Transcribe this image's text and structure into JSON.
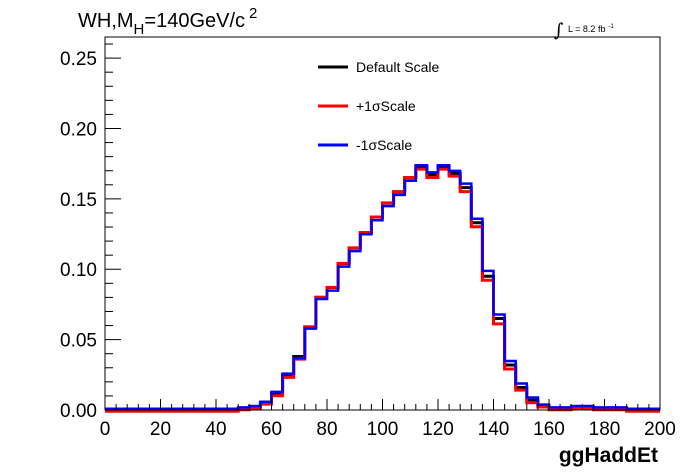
{
  "chart_data": {
    "type": "line",
    "title_prefix": "WH,M",
    "title_sub": "H",
    "title_main": "=140GeV/c",
    "title_sup": "2",
    "lumi_symbol": "∫",
    "lumi_text": "L = 8.2 fb",
    "lumi_sup": "-1",
    "xlabel": "ggHaddEt",
    "ylabel": "",
    "xlim": [
      0,
      200
    ],
    "ylim": [
      0,
      0.265
    ],
    "x_ticks": [
      "0",
      "20",
      "40",
      "60",
      "80",
      "100",
      "120",
      "140",
      "160",
      "180",
      "200"
    ],
    "x_tick_values": [
      0,
      20,
      40,
      60,
      80,
      100,
      120,
      140,
      160,
      180,
      200
    ],
    "y_ticks": [
      "0.00",
      "0.05",
      "0.10",
      "0.15",
      "0.20",
      "0.25"
    ],
    "y_tick_values": [
      0,
      0.05,
      0.1,
      0.15,
      0.2,
      0.25
    ],
    "grid": false,
    "legend_position": "top-center",
    "bin_edges": [
      0,
      4,
      8,
      12,
      16,
      20,
      24,
      28,
      32,
      36,
      40,
      44,
      48,
      52,
      56,
      60,
      64,
      68,
      72,
      76,
      80,
      84,
      88,
      92,
      96,
      100,
      104,
      108,
      112,
      116,
      120,
      124,
      128,
      132,
      136,
      140,
      144,
      148,
      152,
      156,
      160,
      164,
      168,
      172,
      176,
      180,
      184,
      188,
      192,
      196,
      200
    ],
    "series": [
      {
        "name": "Default Scale",
        "color": "#000000",
        "values": [
          0,
          0,
          0,
          0,
          0,
          0,
          0,
          0,
          0,
          0,
          0,
          0,
          0.001,
          0.002,
          0.005,
          0.012,
          0.025,
          0.038,
          0.059,
          0.08,
          0.087,
          0.104,
          0.115,
          0.126,
          0.137,
          0.147,
          0.155,
          0.165,
          0.173,
          0.167,
          0.173,
          0.168,
          0.158,
          0.133,
          0.095,
          0.065,
          0.032,
          0.016,
          0.007,
          0.003,
          0.001,
          0.001,
          0.002,
          0.002,
          0.001,
          0.001,
          0.001,
          0,
          0,
          0
        ]
      },
      {
        "name": "+1σScale",
        "color": "#ff0000",
        "values": [
          0,
          0,
          0,
          0,
          0,
          0,
          0,
          0,
          0,
          0,
          0,
          0,
          0.001,
          0.002,
          0.005,
          0.011,
          0.024,
          0.037,
          0.06,
          0.081,
          0.088,
          0.105,
          0.116,
          0.127,
          0.138,
          0.148,
          0.156,
          0.166,
          0.172,
          0.166,
          0.172,
          0.167,
          0.156,
          0.131,
          0.093,
          0.062,
          0.03,
          0.015,
          0.006,
          0.003,
          0.001,
          0.001,
          0.002,
          0.002,
          0.001,
          0.001,
          0.001,
          0,
          0,
          0
        ]
      },
      {
        "name": "-1σScale",
        "color": "#0000ff",
        "values": [
          0,
          0,
          0,
          0,
          0,
          0,
          0,
          0,
          0,
          0,
          0,
          0,
          0.001,
          0.002,
          0.005,
          0.012,
          0.025,
          0.036,
          0.057,
          0.078,
          0.084,
          0.101,
          0.112,
          0.124,
          0.134,
          0.144,
          0.152,
          0.162,
          0.173,
          0.168,
          0.173,
          0.169,
          0.16,
          0.135,
          0.098,
          0.067,
          0.034,
          0.018,
          0.008,
          0.003,
          0.001,
          0.001,
          0.002,
          0.002,
          0.001,
          0.001,
          0.001,
          0,
          0,
          0
        ]
      }
    ]
  }
}
